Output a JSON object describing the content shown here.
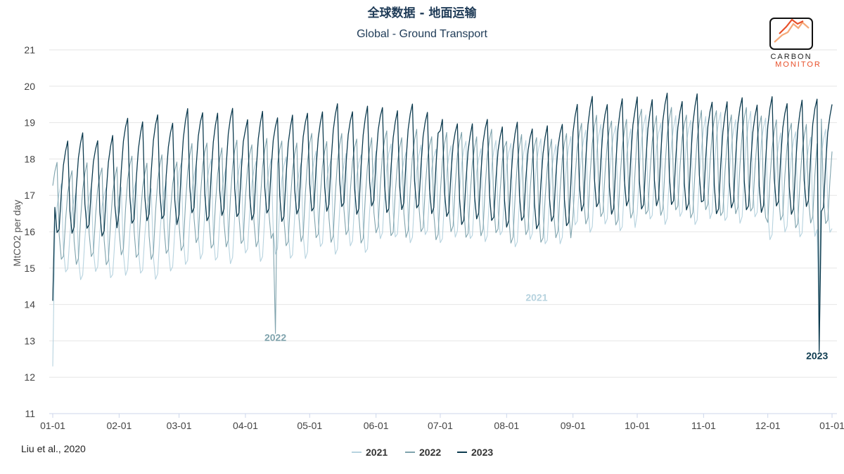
{
  "chart_data": {
    "type": "line",
    "title": "全球数据 - 地面运输",
    "subtitle": "Global - Ground Transport",
    "ylabel": "MtCO2 per day",
    "xlabel": "",
    "ylim": [
      11,
      21
    ],
    "yticks": [
      11,
      12,
      13,
      14,
      15,
      16,
      17,
      18,
      19,
      20,
      21
    ],
    "x_tick_labels": [
      "01-01",
      "02-01",
      "03-01",
      "04-01",
      "05-01",
      "06-01",
      "07-01",
      "08-01",
      "09-01",
      "10-01",
      "11-01",
      "12-01",
      "01-01"
    ],
    "grid": "horizontal",
    "legend_position": "bottom",
    "credit": "Liu et al., 2020",
    "annotations": [
      {
        "text": "2021",
        "series": "2021",
        "x": "08-15",
        "y": 14.1
      },
      {
        "text": "2022",
        "series": "2022",
        "x": "04-15",
        "y": 13.0
      },
      {
        "text": "2023",
        "series": "2023",
        "x": "12-24",
        "y": 12.5
      }
    ],
    "series": [
      {
        "name": "2021",
        "color": "#b7d3df",
        "weekday_level": [
          17.2,
          17.3,
          17.9,
          18.0,
          18.1,
          18.3,
          18.4,
          18.5,
          18.9,
          19.1,
          19.2,
          18.7
        ],
        "weekend_level": [
          14.8,
          14.8,
          15.2,
          15.3,
          15.5,
          15.8,
          15.8,
          15.7,
          16.1,
          16.3,
          16.3,
          15.9
        ],
        "holiday_dips": [
          {
            "day": "01-01",
            "value": 12.3
          },
          {
            "day": "12-25",
            "value": 13.6
          }
        ]
      },
      {
        "name": "2022",
        "color": "#7fa3ad",
        "weekday_level": [
          17.8,
          18.0,
          18.4,
          18.5,
          18.6,
          18.7,
          18.7,
          18.6,
          19.1,
          19.3,
          19.3,
          19.0
        ],
        "weekend_level": [
          15.2,
          15.3,
          15.6,
          15.7,
          15.8,
          15.9,
          15.9,
          15.8,
          16.3,
          16.5,
          16.5,
          16.2
        ],
        "holiday_dips": [
          {
            "day": "04-15",
            "value": 13.2
          },
          {
            "day": "12-25",
            "value": 13.3
          }
        ]
      },
      {
        "name": "2023",
        "color": "#0d3b4f",
        "weekday_level": [
          18.6,
          19.1,
          19.3,
          19.2,
          19.4,
          19.4,
          19.0,
          18.9,
          19.6,
          19.7,
          19.6,
          19.6
        ],
        "weekend_level": [
          16.0,
          16.3,
          16.4,
          16.4,
          16.6,
          16.6,
          16.3,
          16.2,
          16.6,
          16.7,
          16.6,
          16.6
        ],
        "holiday_dips": [
          {
            "day": "01-01",
            "value": 14.1
          },
          {
            "day": "12-25",
            "value": 12.7
          }
        ]
      }
    ]
  },
  "logo": {
    "top_text": "CARBON",
    "bottom_text": "MONITOR",
    "icon": "line-chart-logo-icon"
  }
}
